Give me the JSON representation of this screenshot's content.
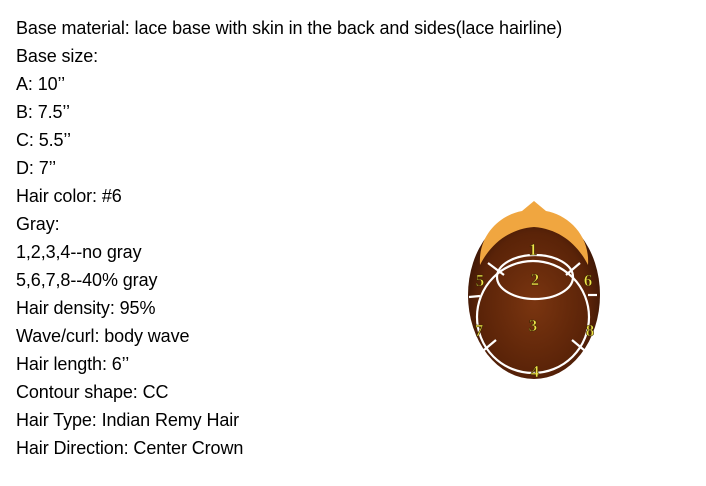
{
  "specs": [
    "Base material: lace base with skin in the back and sides(lace hairline)",
    "Base size:",
    "A: 10’’",
    "B: 7.5’’",
    "C: 5.5’’",
    "D: 7’’",
    "Hair color: #6",
    "Gray:",
    "1,2,3,4--no gray",
    "5,6,7,8--40% gray",
    "Hair density: 95%",
    "Wave/curl: body wave",
    "Hair length: 6’’",
    "Contour shape: CC",
    "Hair Type: Indian Remy Hair",
    "Hair Direction: Center Crown"
  ],
  "diagram": {
    "zones": [
      "1",
      "2",
      "3",
      "4",
      "5",
      "6",
      "7",
      "8"
    ],
    "colors": {
      "base": "#5a2308",
      "lace": "#f0a640",
      "lines": "#ffffff",
      "labels": "#f0e64a"
    }
  }
}
